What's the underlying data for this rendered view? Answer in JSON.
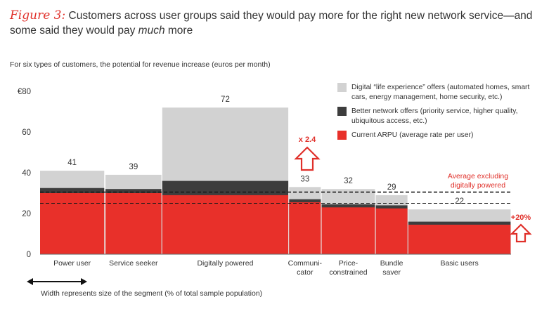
{
  "title": {
    "figure_label": "Figure 3:",
    "text_before_em": "Customers across user groups said they would pay more for the right new network service—and some said they would pay ",
    "emphasis": "much",
    "text_after_em": " more"
  },
  "subtitle": "For six types of customers, the potential for revenue increase (euros per month)",
  "footnote": "Width represents size of the segment (% of total sample population)",
  "legend": [
    {
      "label": "Digital “life experience” offers (automated homes, smart cars, energy management, home security, etc.)",
      "color": "#d2d2d2"
    },
    {
      "label": "Better network offers (priority service, higher quality, ubiquitous access, etc.)",
      "color": "#3d3d3d"
    },
    {
      "label": "Current ARPU (average rate per user)",
      "color": "#e8302a"
    }
  ],
  "annotations": {
    "multiplier": "x 2.4",
    "increase_basic": "+20%",
    "average_label": "Average excluding digitally powered"
  },
  "chart_data": {
    "type": "bar",
    "variable_width": true,
    "y_tick_labels": [
      "0",
      "20",
      "40",
      "60",
      "€80"
    ],
    "ylim": [
      0,
      80
    ],
    "categories": [
      {
        "label": [
          "Power user"
        ],
        "width_share": 0.126,
        "arpu": 30,
        "network": 2.5,
        "total": 41
      },
      {
        "label": [
          "Service seeker"
        ],
        "width_share": 0.11,
        "arpu": 30,
        "network": 2,
        "total": 39
      },
      {
        "label": [
          "Digitally powered"
        ],
        "width_share": 0.246,
        "arpu": 29,
        "network": 7,
        "total": 72
      },
      {
        "label": [
          "Communi-",
          "cator"
        ],
        "width_share": 0.063,
        "arpu": 25.5,
        "network": 1.5,
        "total": 33
      },
      {
        "label": [
          "Price-",
          "constrained"
        ],
        "width_share": 0.105,
        "arpu": 23,
        "network": 1.5,
        "total": 32
      },
      {
        "label": [
          "Bundle",
          "saver"
        ],
        "width_share": 0.063,
        "arpu": 22.5,
        "network": 1.5,
        "total": 29
      },
      {
        "label": [
          "Basic users"
        ],
        "width_share": 0.2,
        "arpu": 14.5,
        "network": 1.5,
        "total": 22
      }
    ],
    "reference_lines": [
      {
        "name": "average_total_excl_digitally_powered",
        "value": 30.5
      },
      {
        "name": "average_arpu",
        "value": 25
      }
    ]
  }
}
